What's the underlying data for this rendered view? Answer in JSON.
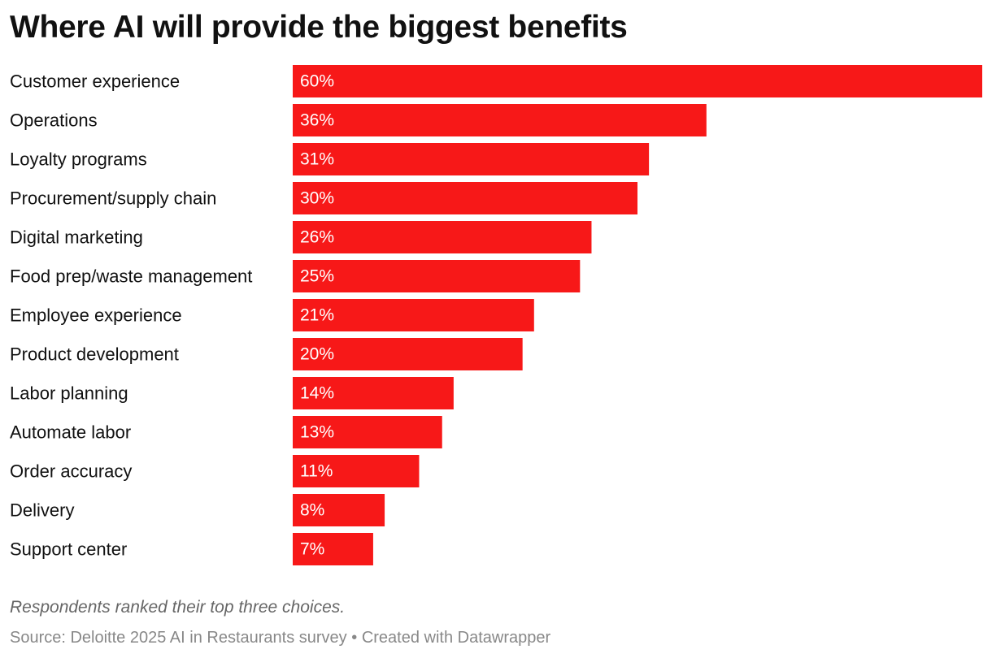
{
  "chart_data": {
    "type": "bar",
    "orientation": "horizontal",
    "title": "Where AI will provide the biggest benefits",
    "categories": [
      "Customer experience",
      "Operations",
      "Loyalty programs",
      "Procurement/supply chain",
      "Digital marketing",
      "Food prep/waste management",
      "Employee experience",
      "Product development",
      "Labor planning",
      "Automate labor",
      "Order accuracy",
      "Delivery",
      "Support center"
    ],
    "values": [
      60,
      36,
      31,
      30,
      26,
      25,
      21,
      20,
      14,
      13,
      11,
      8,
      7
    ],
    "value_labels": [
      "60%",
      "36%",
      "31%",
      "30%",
      "26%",
      "25%",
      "21%",
      "20%",
      "14%",
      "13%",
      "11%",
      "8%",
      "7%"
    ],
    "unit": "%",
    "xlim": [
      0,
      60
    ],
    "grid": false,
    "legend": "none",
    "bar_color": "#f71818"
  },
  "note": "Respondents ranked their top three choices.",
  "source": {
    "label": "Source: Deloitte 2025 AI in Restaurants survey",
    "separator": "•",
    "credit": "Created with Datawrapper"
  }
}
